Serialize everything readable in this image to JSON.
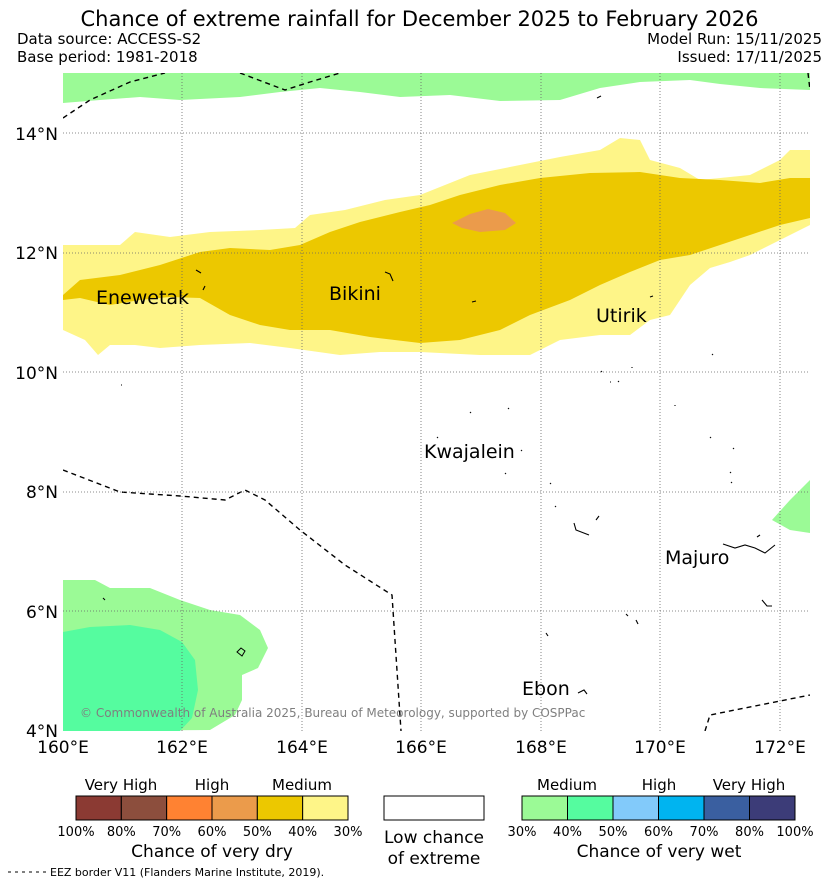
{
  "title": "Chance of extreme rainfall for December 2025 to February 2026",
  "meta": {
    "data_source": "Data source: ACCESS-S2",
    "base_period": "Base period: 1981-2018",
    "model_run": "Model Run: 15/11/2025",
    "issued": "Issued: 17/11/2025"
  },
  "map": {
    "lat_ticks": [
      "4°N",
      "6°N",
      "8°N",
      "10°N",
      "12°N",
      "14°N"
    ],
    "lon_ticks": [
      "160°E",
      "162°E",
      "164°E",
      "166°E",
      "168°E",
      "170°E",
      "172°E"
    ],
    "places": [
      "Enewetak",
      "Bikini",
      "Utirik",
      "Kwajalein",
      "Majuro",
      "Ebon"
    ],
    "copyright": "© Commonwealth of Australia 2025, Bureau of Meteorology, supported by COSPPac"
  },
  "legend": {
    "dry": {
      "headers": [
        "Very High",
        "High",
        "Medium"
      ],
      "colors": [
        "#8b3a33",
        "#8c4e3d",
        "#ff8232",
        "#eb9b4b",
        "#ecc800",
        "#fef588"
      ],
      "percents": [
        "100%",
        "80%",
        "70%",
        "60%",
        "50%",
        "40%",
        "30%"
      ],
      "title": "Chance of very dry"
    },
    "low": {
      "line1": "Low chance",
      "line2": "of extreme"
    },
    "wet": {
      "headers": [
        "Medium",
        "High",
        "Very High"
      ],
      "colors": [
        "#9bfa96",
        "#55fc9f",
        "#82cafa",
        "#00b4f0",
        "#3a5fa0",
        "#3c3c78"
      ],
      "percents": [
        "30%",
        "40%",
        "50%",
        "60%",
        "70%",
        "80%",
        "100%"
      ],
      "title": "Chance of very wet"
    },
    "eez_note": "EEZ border V11 (Flanders Marine Institute, 2019)."
  }
}
